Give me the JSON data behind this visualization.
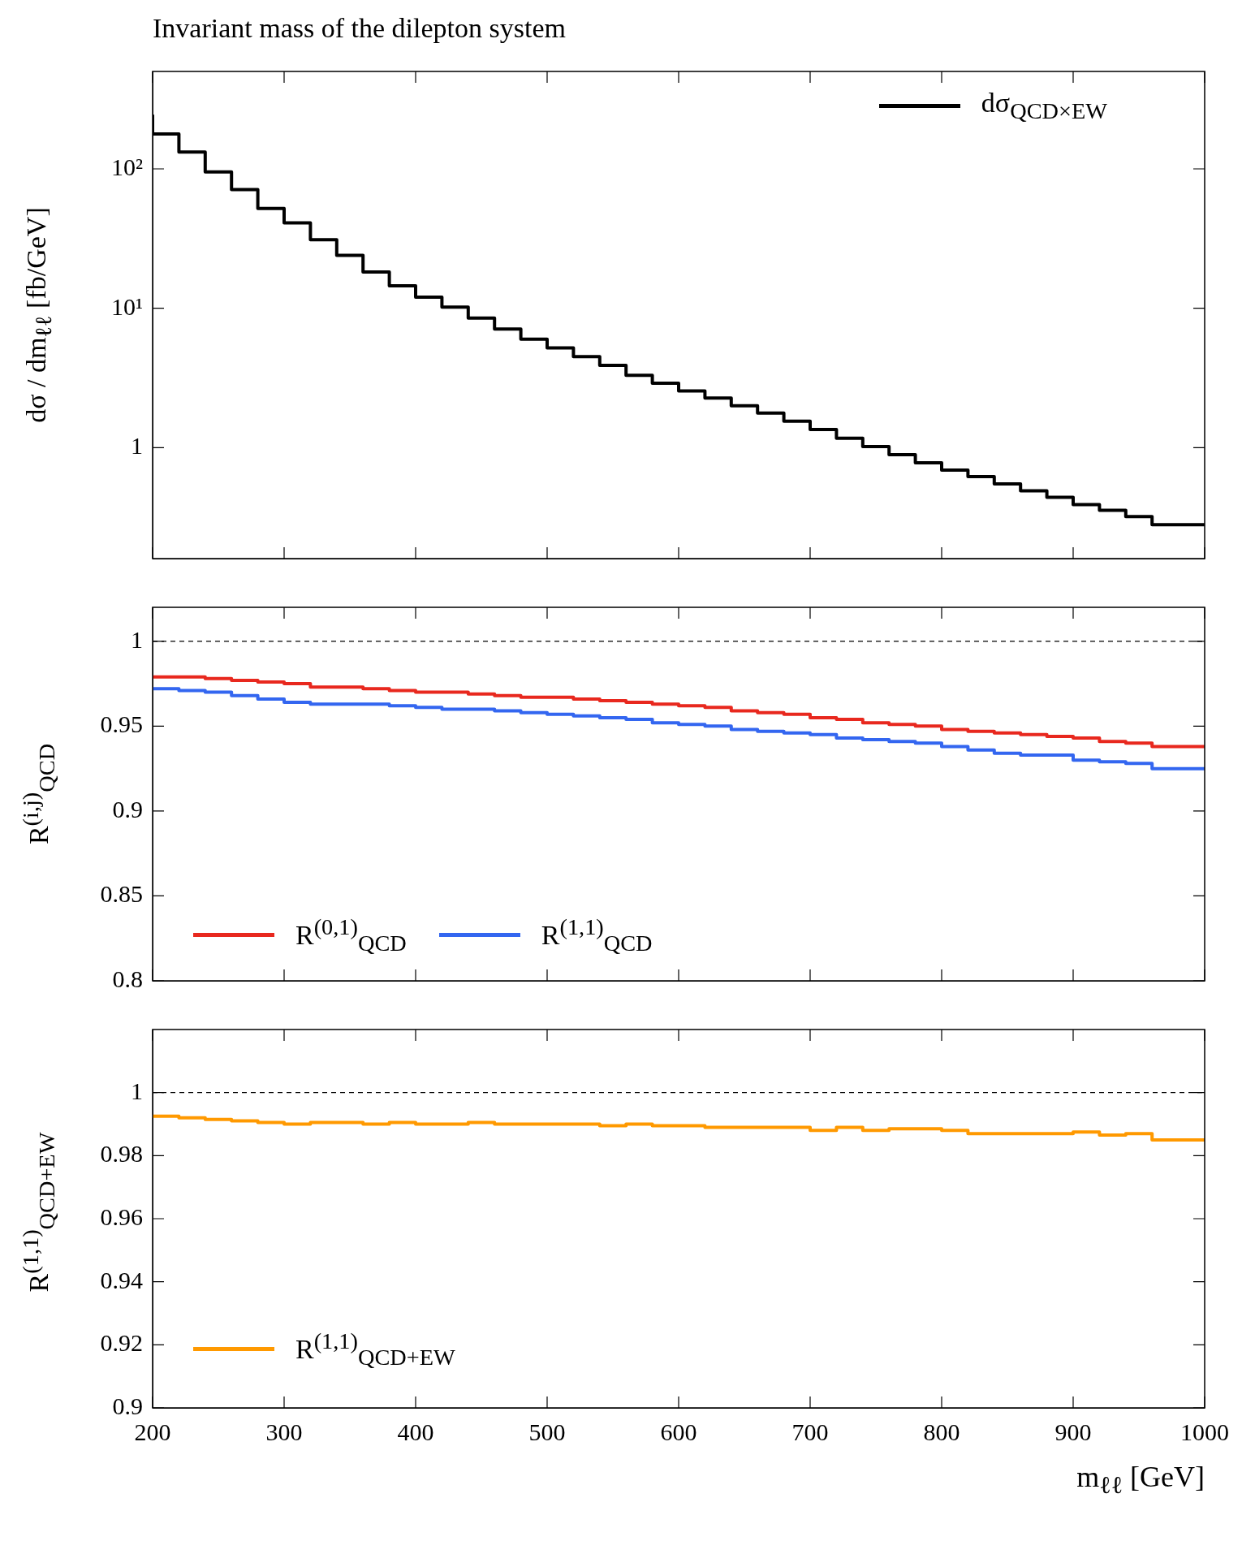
{
  "chart_data": [
    {
      "type": "step",
      "title": "Invariant mass of the dilepton system",
      "ylabel": "dσ / dm$_{ℓℓ}$ [fb/GeV]",
      "log": "y",
      "xlim": [
        200,
        1000
      ],
      "xticks": [
        200,
        300,
        400,
        500,
        600,
        700,
        800,
        900,
        1000
      ],
      "ylim": [
        0.16,
        500
      ],
      "yticks": [
        {
          "value": 1,
          "label": "1"
        },
        {
          "value": 10,
          "label": "10¹"
        },
        {
          "value": 100,
          "label": "10²"
        }
      ],
      "tick_labels": "y",
      "legend": "top right",
      "x": [
        200,
        220,
        240,
        260,
        280,
        300,
        320,
        340,
        360,
        380,
        400,
        420,
        440,
        460,
        480,
        500,
        520,
        540,
        560,
        580,
        600,
        620,
        640,
        660,
        680,
        700,
        720,
        740,
        760,
        780,
        800,
        820,
        840,
        860,
        880,
        900,
        920,
        940,
        960,
        980,
        1000
      ],
      "series": [
        {
          "name": "dσ$_{QCD×EW}$",
          "color": "#000000",
          "values": [
            245,
            178,
            132,
            95,
            71,
            52,
            41,
            31,
            24,
            18.2,
            14.5,
            12.0,
            10.2,
            8.5,
            7.1,
            6.0,
            5.2,
            4.5,
            3.9,
            3.3,
            2.9,
            2.55,
            2.27,
            2.0,
            1.77,
            1.55,
            1.35,
            1.17,
            1.02,
            0.89,
            0.78,
            0.69,
            0.62,
            0.55,
            0.49,
            0.44,
            0.39,
            0.355,
            0.32,
            0.28,
            0.28
          ]
        }
      ]
    },
    {
      "type": "step",
      "ylabel": "R$^{(i,j)}$$_{QCD}$",
      "xlim": [
        200,
        1000
      ],
      "xticks": [
        200,
        300,
        400,
        500,
        600,
        700,
        800,
        900,
        1000
      ],
      "ylim": [
        0.8,
        1.02
      ],
      "yticks": [
        0.8,
        0.85,
        0.9,
        0.95,
        1
      ],
      "tick_labels": "y",
      "legend": "bottom left",
      "ref_lines": [
        {
          "axis": "y",
          "value": 1,
          "line_style": "dashed",
          "color": "#000000"
        }
      ],
      "x": [
        200,
        220,
        240,
        260,
        280,
        300,
        320,
        340,
        360,
        380,
        400,
        420,
        440,
        460,
        480,
        500,
        520,
        540,
        560,
        580,
        600,
        620,
        640,
        660,
        680,
        700,
        720,
        740,
        760,
        780,
        800,
        820,
        840,
        860,
        880,
        900,
        920,
        940,
        960,
        980,
        1000
      ],
      "series": [
        {
          "name": "R$^{(0,1)}$$_{QCD}$",
          "color": "#e8281e",
          "values": [
            0.979,
            0.979,
            0.979,
            0.978,
            0.977,
            0.976,
            0.975,
            0.973,
            0.973,
            0.972,
            0.971,
            0.97,
            0.97,
            0.969,
            0.968,
            0.967,
            0.967,
            0.966,
            0.965,
            0.964,
            0.963,
            0.962,
            0.961,
            0.959,
            0.958,
            0.957,
            0.955,
            0.954,
            0.952,
            0.951,
            0.95,
            0.948,
            0.947,
            0.946,
            0.945,
            0.944,
            0.943,
            0.941,
            0.94,
            0.938,
            0.938
          ]
        },
        {
          "name": "R$^{(1,1)}$$_{QCD}$",
          "color": "#3366f0",
          "values": [
            0.972,
            0.972,
            0.971,
            0.97,
            0.968,
            0.966,
            0.964,
            0.963,
            0.963,
            0.963,
            0.962,
            0.961,
            0.96,
            0.96,
            0.959,
            0.958,
            0.957,
            0.956,
            0.955,
            0.954,
            0.952,
            0.951,
            0.95,
            0.948,
            0.947,
            0.946,
            0.945,
            0.943,
            0.942,
            0.941,
            0.94,
            0.938,
            0.936,
            0.934,
            0.933,
            0.933,
            0.93,
            0.929,
            0.928,
            0.925,
            0.925
          ]
        }
      ]
    },
    {
      "type": "step",
      "ylabel": "R$^{(1,1)}$$_{QCD+EW}$",
      "xlabel": "m$_{ℓℓ}$ [GeV]",
      "xlim": [
        200,
        1000
      ],
      "xticks": [
        200,
        300,
        400,
        500,
        600,
        700,
        800,
        900,
        1000
      ],
      "ylim": [
        0.9,
        1.02
      ],
      "yticks": [
        0.9,
        0.92,
        0.94,
        0.96,
        0.98,
        1
      ],
      "legend": "bottom left",
      "ref_lines": [
        {
          "axis": "y",
          "value": 1,
          "line_style": "dashed",
          "color": "#000000"
        }
      ],
      "x": [
        200,
        220,
        240,
        260,
        280,
        300,
        320,
        340,
        360,
        380,
        400,
        420,
        440,
        460,
        480,
        500,
        520,
        540,
        560,
        580,
        600,
        620,
        640,
        660,
        680,
        700,
        720,
        740,
        760,
        780,
        800,
        820,
        840,
        860,
        880,
        900,
        920,
        940,
        960,
        980,
        1000
      ],
      "series": [
        {
          "name": "R$^{(1,1)}$$_{QCD+EW}$",
          "color": "#ff9900",
          "values": [
            0.9925,
            0.9925,
            0.992,
            0.9915,
            0.991,
            0.9905,
            0.99,
            0.9905,
            0.9905,
            0.99,
            0.9905,
            0.99,
            0.99,
            0.9905,
            0.99,
            0.99,
            0.99,
            0.99,
            0.9895,
            0.99,
            0.9895,
            0.9895,
            0.989,
            0.989,
            0.989,
            0.989,
            0.988,
            0.989,
            0.988,
            0.9885,
            0.9885,
            0.988,
            0.987,
            0.987,
            0.987,
            0.987,
            0.9875,
            0.9865,
            0.987,
            0.985,
            0.985
          ]
        }
      ]
    }
  ]
}
